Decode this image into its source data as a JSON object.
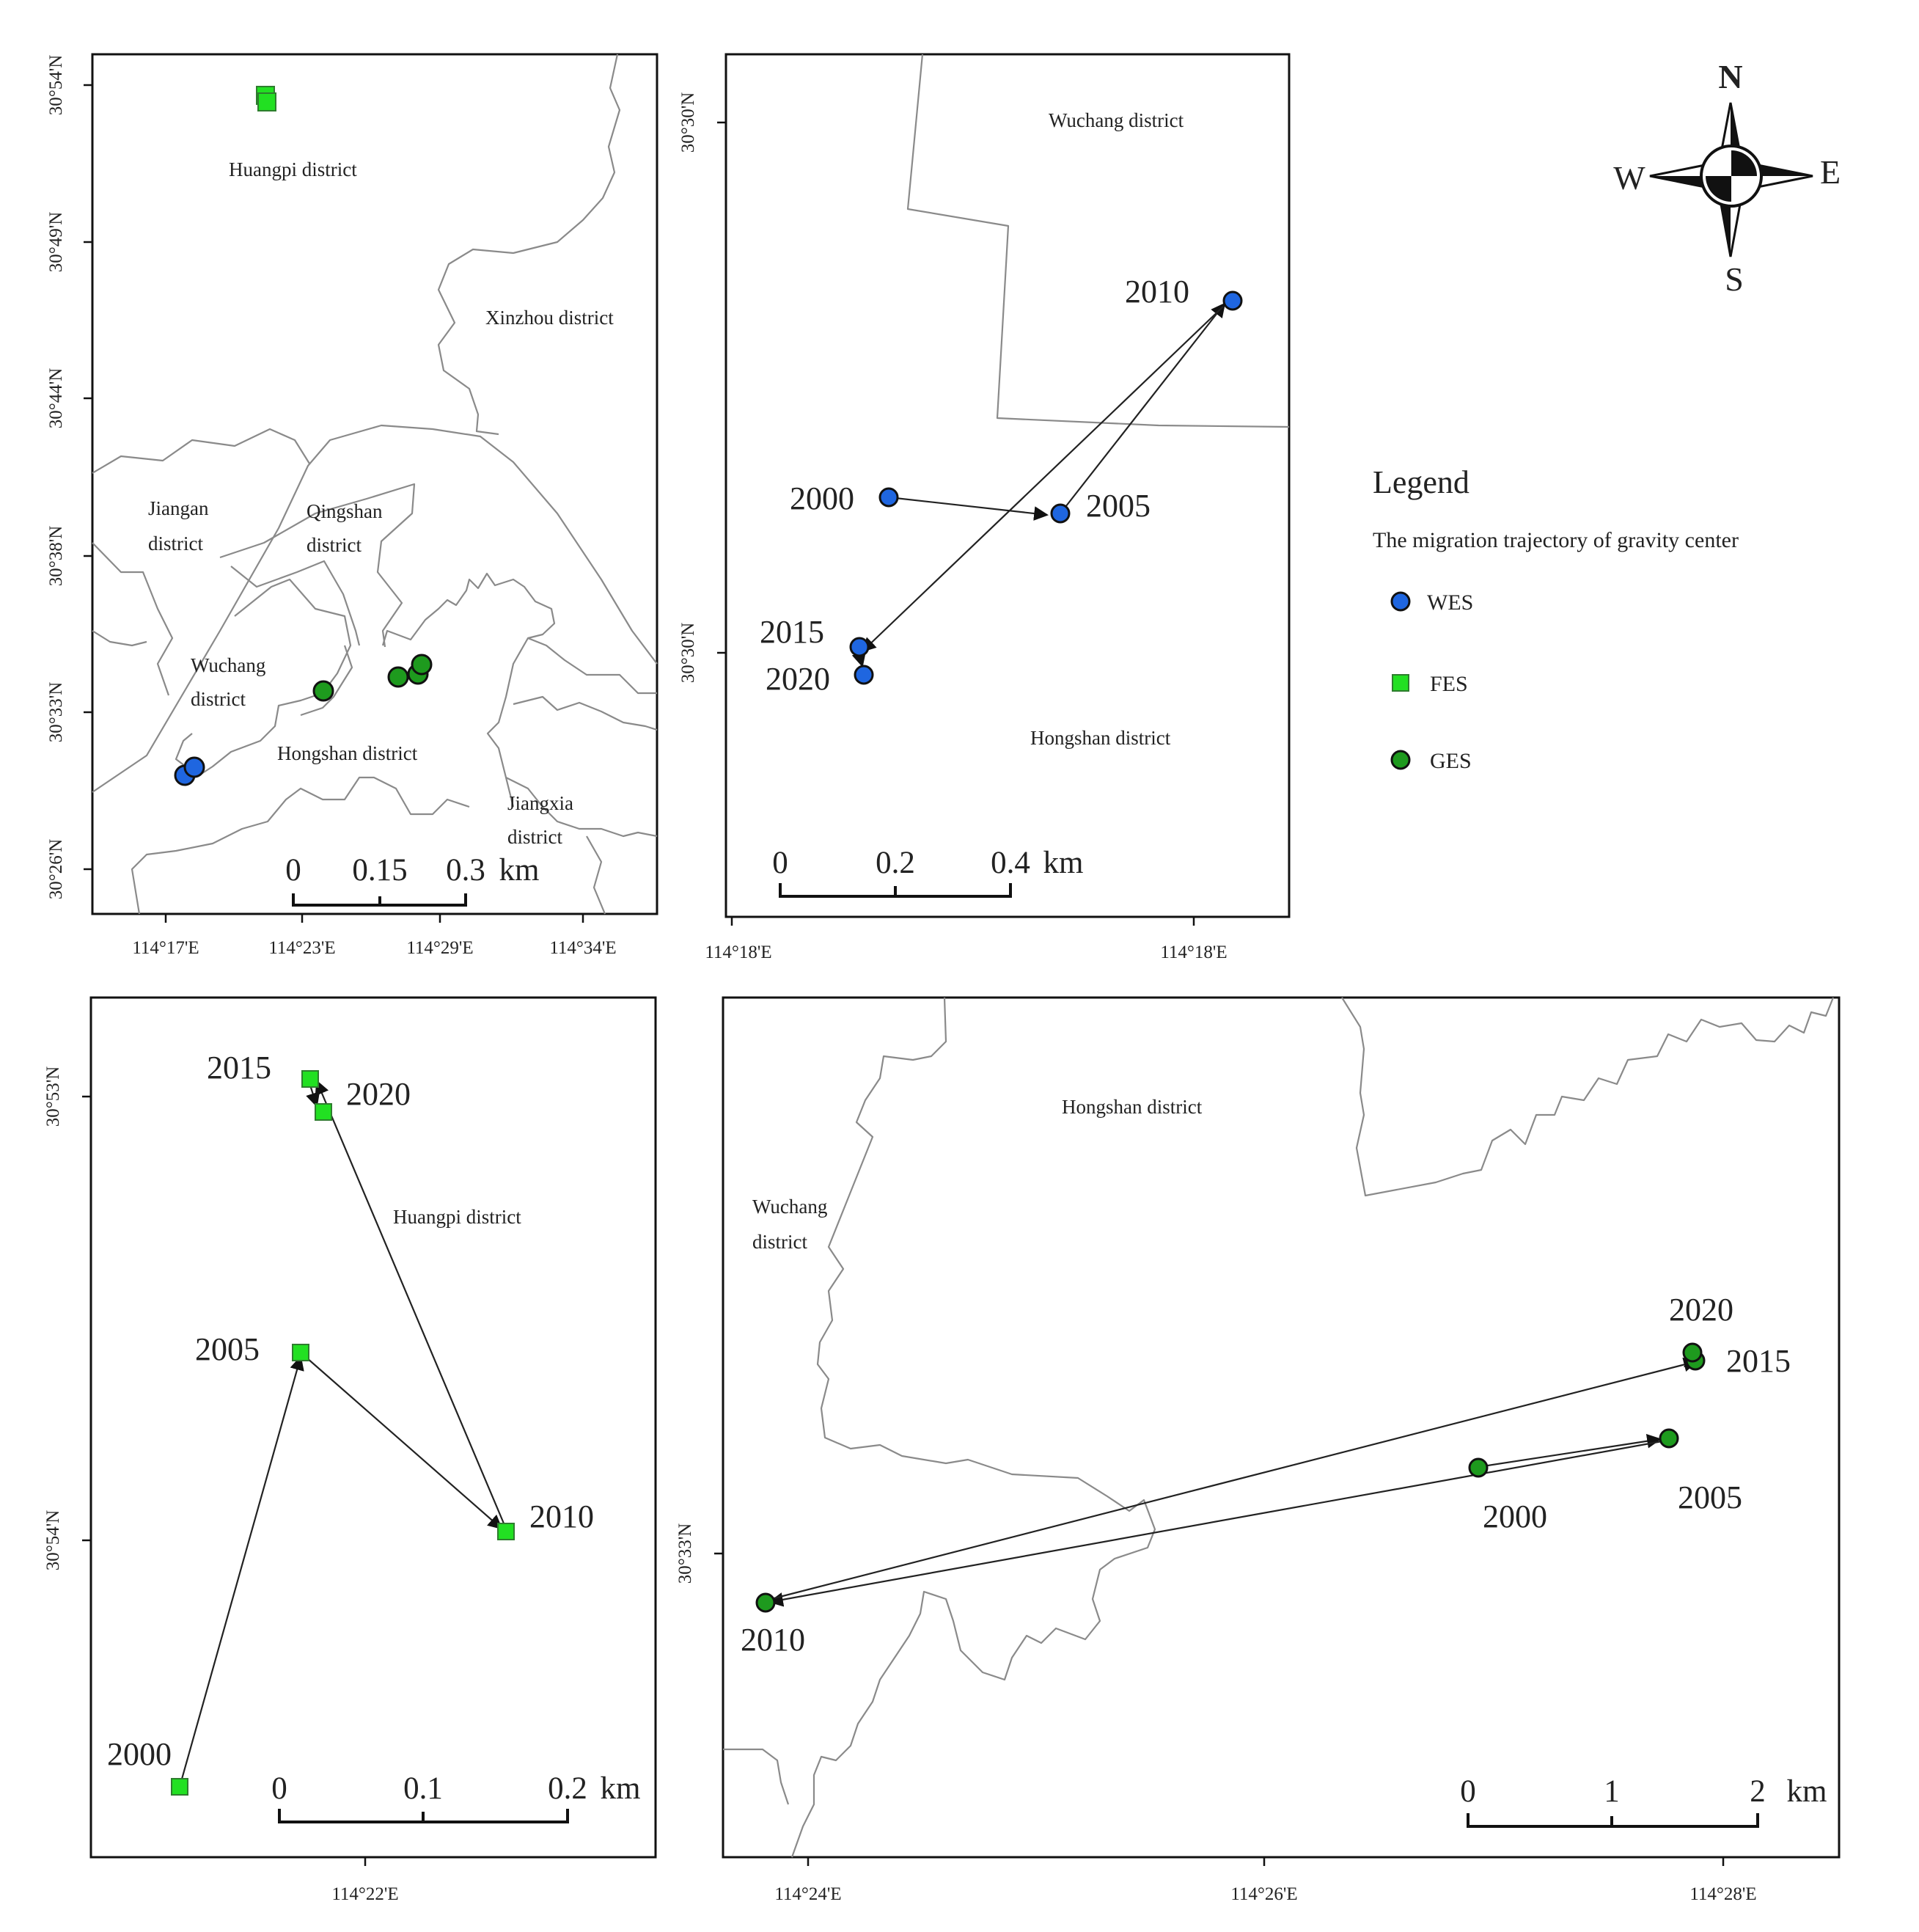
{
  "panels": {
    "overview": {
      "lat_labels": [
        "30°54'N",
        "30°49'N",
        "30°44'N",
        "30°38'N",
        "30°33'N",
        "30°26'N"
      ],
      "lon_labels": [
        "114°17'E",
        "114°23'E",
        "114°29'E",
        "114°34'E"
      ],
      "districts": {
        "huangpi": "Huangpi district",
        "xinzhou": "Xinzhou district",
        "jiangan": [
          "Jiangan",
          "district"
        ],
        "qingshan": [
          "Qingshan",
          "district"
        ],
        "wuchang": [
          "Wuchang",
          "district"
        ],
        "hongshan": "Hongshan district",
        "jiangxia": [
          "Jiangxia",
          "district"
        ]
      },
      "scale": [
        "0",
        "0.15",
        "0.3",
        "km"
      ]
    },
    "wes": {
      "lat_labels": [
        "30°30'N",
        "30°30'N"
      ],
      "lon_labels": [
        "114°18'E",
        "114°18'E"
      ],
      "districts": {
        "wuchang": "Wuchang district",
        "hongshan": "Hongshan district"
      },
      "years": [
        "2000",
        "2005",
        "2010",
        "2015",
        "2020"
      ],
      "scale": [
        "0",
        "0.2",
        "0.4",
        "km"
      ]
    },
    "fes": {
      "lat_labels": [
        "30°53'N",
        "30°54'N"
      ],
      "lon_labels": [
        "114°22'E"
      ],
      "districts": {
        "huangpi": "Huangpi district"
      },
      "years": [
        "2015",
        "2020",
        "2005",
        "2010",
        "2000"
      ],
      "scale": [
        "0",
        "0.1",
        "0.2",
        "km"
      ]
    },
    "ges": {
      "lat_labels": [
        "30°33'N"
      ],
      "lon_labels": [
        "114°24'E",
        "114°26'E",
        "114°28'E"
      ],
      "districts": {
        "hongshan": "Hongshan district",
        "wuchang": [
          "Wuchang",
          "district"
        ]
      },
      "years": [
        "2020",
        "2015",
        "2000",
        "2005",
        "2010"
      ],
      "scale": [
        "0",
        "1",
        "2",
        "km"
      ]
    }
  },
  "compass": {
    "n": "N",
    "s": "S",
    "e": "E",
    "w": "W"
  },
  "legend": {
    "title": "Legend",
    "subtitle": "The migration trajectory of gravity center",
    "items": [
      {
        "label": "WES",
        "color": "#1f66e0",
        "shape": "circle"
      },
      {
        "label": "FES",
        "color": "#22e022",
        "shape": "square"
      },
      {
        "label": "GES",
        "color": "#1e9a1e",
        "shape": "circle"
      }
    ]
  }
}
